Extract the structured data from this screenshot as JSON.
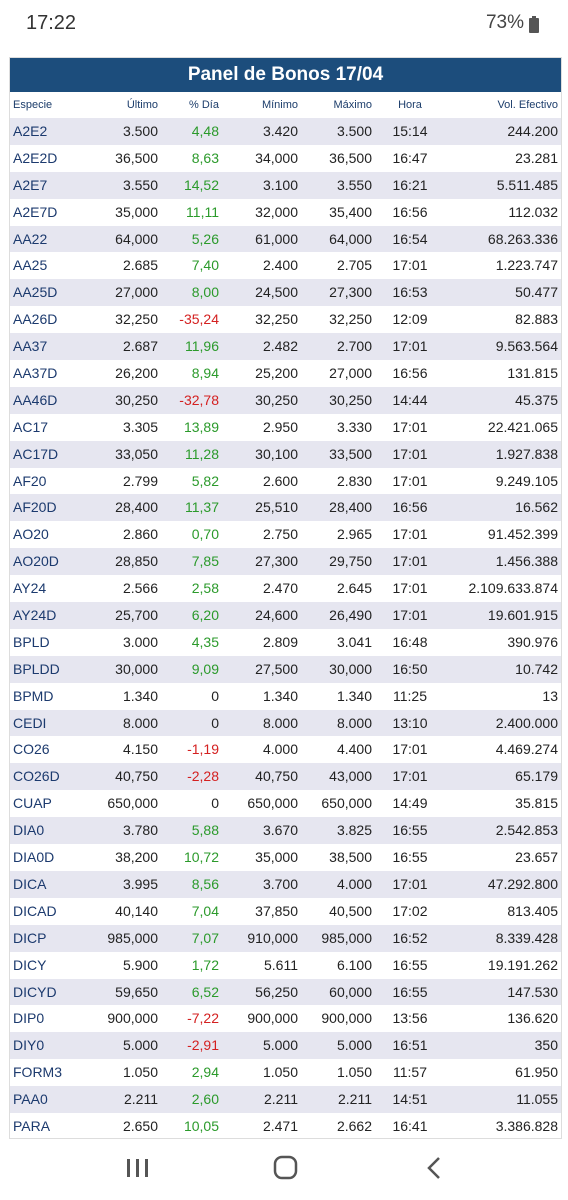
{
  "status_bar": {
    "time": "17:22",
    "battery": "73%"
  },
  "header": {
    "title": "Panel de Bonos 17/04"
  },
  "table": {
    "columns": [
      "Especie",
      "Último",
      "% Día",
      "Mínimo",
      "Máximo",
      "Hora",
      "Vol. Efectivo"
    ],
    "rows": [
      [
        "A2E2",
        "3.500",
        "4,48",
        "3.420",
        "3.500",
        "15:14",
        "244.200"
      ],
      [
        "A2E2D",
        "36,500",
        "8,63",
        "34,000",
        "36,500",
        "16:47",
        "23.281"
      ],
      [
        "A2E7",
        "3.550",
        "14,52",
        "3.100",
        "3.550",
        "16:21",
        "5.511.485"
      ],
      [
        "A2E7D",
        "35,000",
        "11,11",
        "32,000",
        "35,400",
        "16:56",
        "112.032"
      ],
      [
        "AA22",
        "64,000",
        "5,26",
        "61,000",
        "64,000",
        "16:54",
        "68.263.336"
      ],
      [
        "AA25",
        "2.685",
        "7,40",
        "2.400",
        "2.705",
        "17:01",
        "1.223.747"
      ],
      [
        "AA25D",
        "27,000",
        "8,00",
        "24,500",
        "27,300",
        "16:53",
        "50.477"
      ],
      [
        "AA26D",
        "32,250",
        "-35,24",
        "32,250",
        "32,250",
        "12:09",
        "82.883"
      ],
      [
        "AA37",
        "2.687",
        "11,96",
        "2.482",
        "2.700",
        "17:01",
        "9.563.564"
      ],
      [
        "AA37D",
        "26,200",
        "8,94",
        "25,200",
        "27,000",
        "16:56",
        "131.815"
      ],
      [
        "AA46D",
        "30,250",
        "-32,78",
        "30,250",
        "30,250",
        "14:44",
        "45.375"
      ],
      [
        "AC17",
        "3.305",
        "13,89",
        "2.950",
        "3.330",
        "17:01",
        "22.421.065"
      ],
      [
        "AC17D",
        "33,050",
        "11,28",
        "30,100",
        "33,500",
        "17:01",
        "1.927.838"
      ],
      [
        "AF20",
        "2.799",
        "5,82",
        "2.600",
        "2.830",
        "17:01",
        "9.249.105"
      ],
      [
        "AF20D",
        "28,400",
        "11,37",
        "25,510",
        "28,400",
        "16:56",
        "16.562"
      ],
      [
        "AO20",
        "2.860",
        "0,70",
        "2.750",
        "2.965",
        "17:01",
        "91.452.399"
      ],
      [
        "AO20D",
        "28,850",
        "7,85",
        "27,300",
        "29,750",
        "17:01",
        "1.456.388"
      ],
      [
        "AY24",
        "2.566",
        "2,58",
        "2.470",
        "2.645",
        "17:01",
        "2.109.633.874"
      ],
      [
        "AY24D",
        "25,700",
        "6,20",
        "24,600",
        "26,490",
        "17:01",
        "19.601.915"
      ],
      [
        "BPLD",
        "3.000",
        "4,35",
        "2.809",
        "3.041",
        "16:48",
        "390.976"
      ],
      [
        "BPLDD",
        "30,000",
        "9,09",
        "27,500",
        "30,000",
        "16:50",
        "10.742"
      ],
      [
        "BPMD",
        "1.340",
        "0",
        "1.340",
        "1.340",
        "11:25",
        "13"
      ],
      [
        "CEDI",
        "8.000",
        "0",
        "8.000",
        "8.000",
        "13:10",
        "2.400.000"
      ],
      [
        "CO26",
        "4.150",
        "-1,19",
        "4.000",
        "4.400",
        "17:01",
        "4.469.274"
      ],
      [
        "CO26D",
        "40,750",
        "-2,28",
        "40,750",
        "43,000",
        "17:01",
        "65.179"
      ],
      [
        "CUAP",
        "650,000",
        "0",
        "650,000",
        "650,000",
        "14:49",
        "35.815"
      ],
      [
        "DIA0",
        "3.780",
        "5,88",
        "3.670",
        "3.825",
        "16:55",
        "2.542.853"
      ],
      [
        "DIA0D",
        "38,200",
        "10,72",
        "35,000",
        "38,500",
        "16:55",
        "23.657"
      ],
      [
        "DICA",
        "3.995",
        "8,56",
        "3.700",
        "4.000",
        "17:01",
        "47.292.800"
      ],
      [
        "DICAD",
        "40,140",
        "7,04",
        "37,850",
        "40,500",
        "17:02",
        "813.405"
      ],
      [
        "DICP",
        "985,000",
        "7,07",
        "910,000",
        "985,000",
        "16:52",
        "8.339.428"
      ],
      [
        "DICY",
        "5.900",
        "1,72",
        "5.611",
        "6.100",
        "16:55",
        "19.191.262"
      ],
      [
        "DICYD",
        "59,650",
        "6,52",
        "56,250",
        "60,000",
        "16:55",
        "147.530"
      ],
      [
        "DIP0",
        "900,000",
        "-7,22",
        "900,000",
        "900,000",
        "13:56",
        "136.620"
      ],
      [
        "DIY0",
        "5.000",
        "-2,91",
        "5.000",
        "5.000",
        "16:51",
        "350"
      ],
      [
        "FORM3",
        "1.050",
        "2,94",
        "1.050",
        "1.050",
        "11:57",
        "61.950"
      ],
      [
        "PAA0",
        "2.211",
        "2,60",
        "2.211",
        "2.211",
        "14:51",
        "11.055"
      ],
      [
        "PARA",
        "2.650",
        "10,05",
        "2.471",
        "2.662",
        "16:41",
        "3.386.828"
      ]
    ]
  }
}
